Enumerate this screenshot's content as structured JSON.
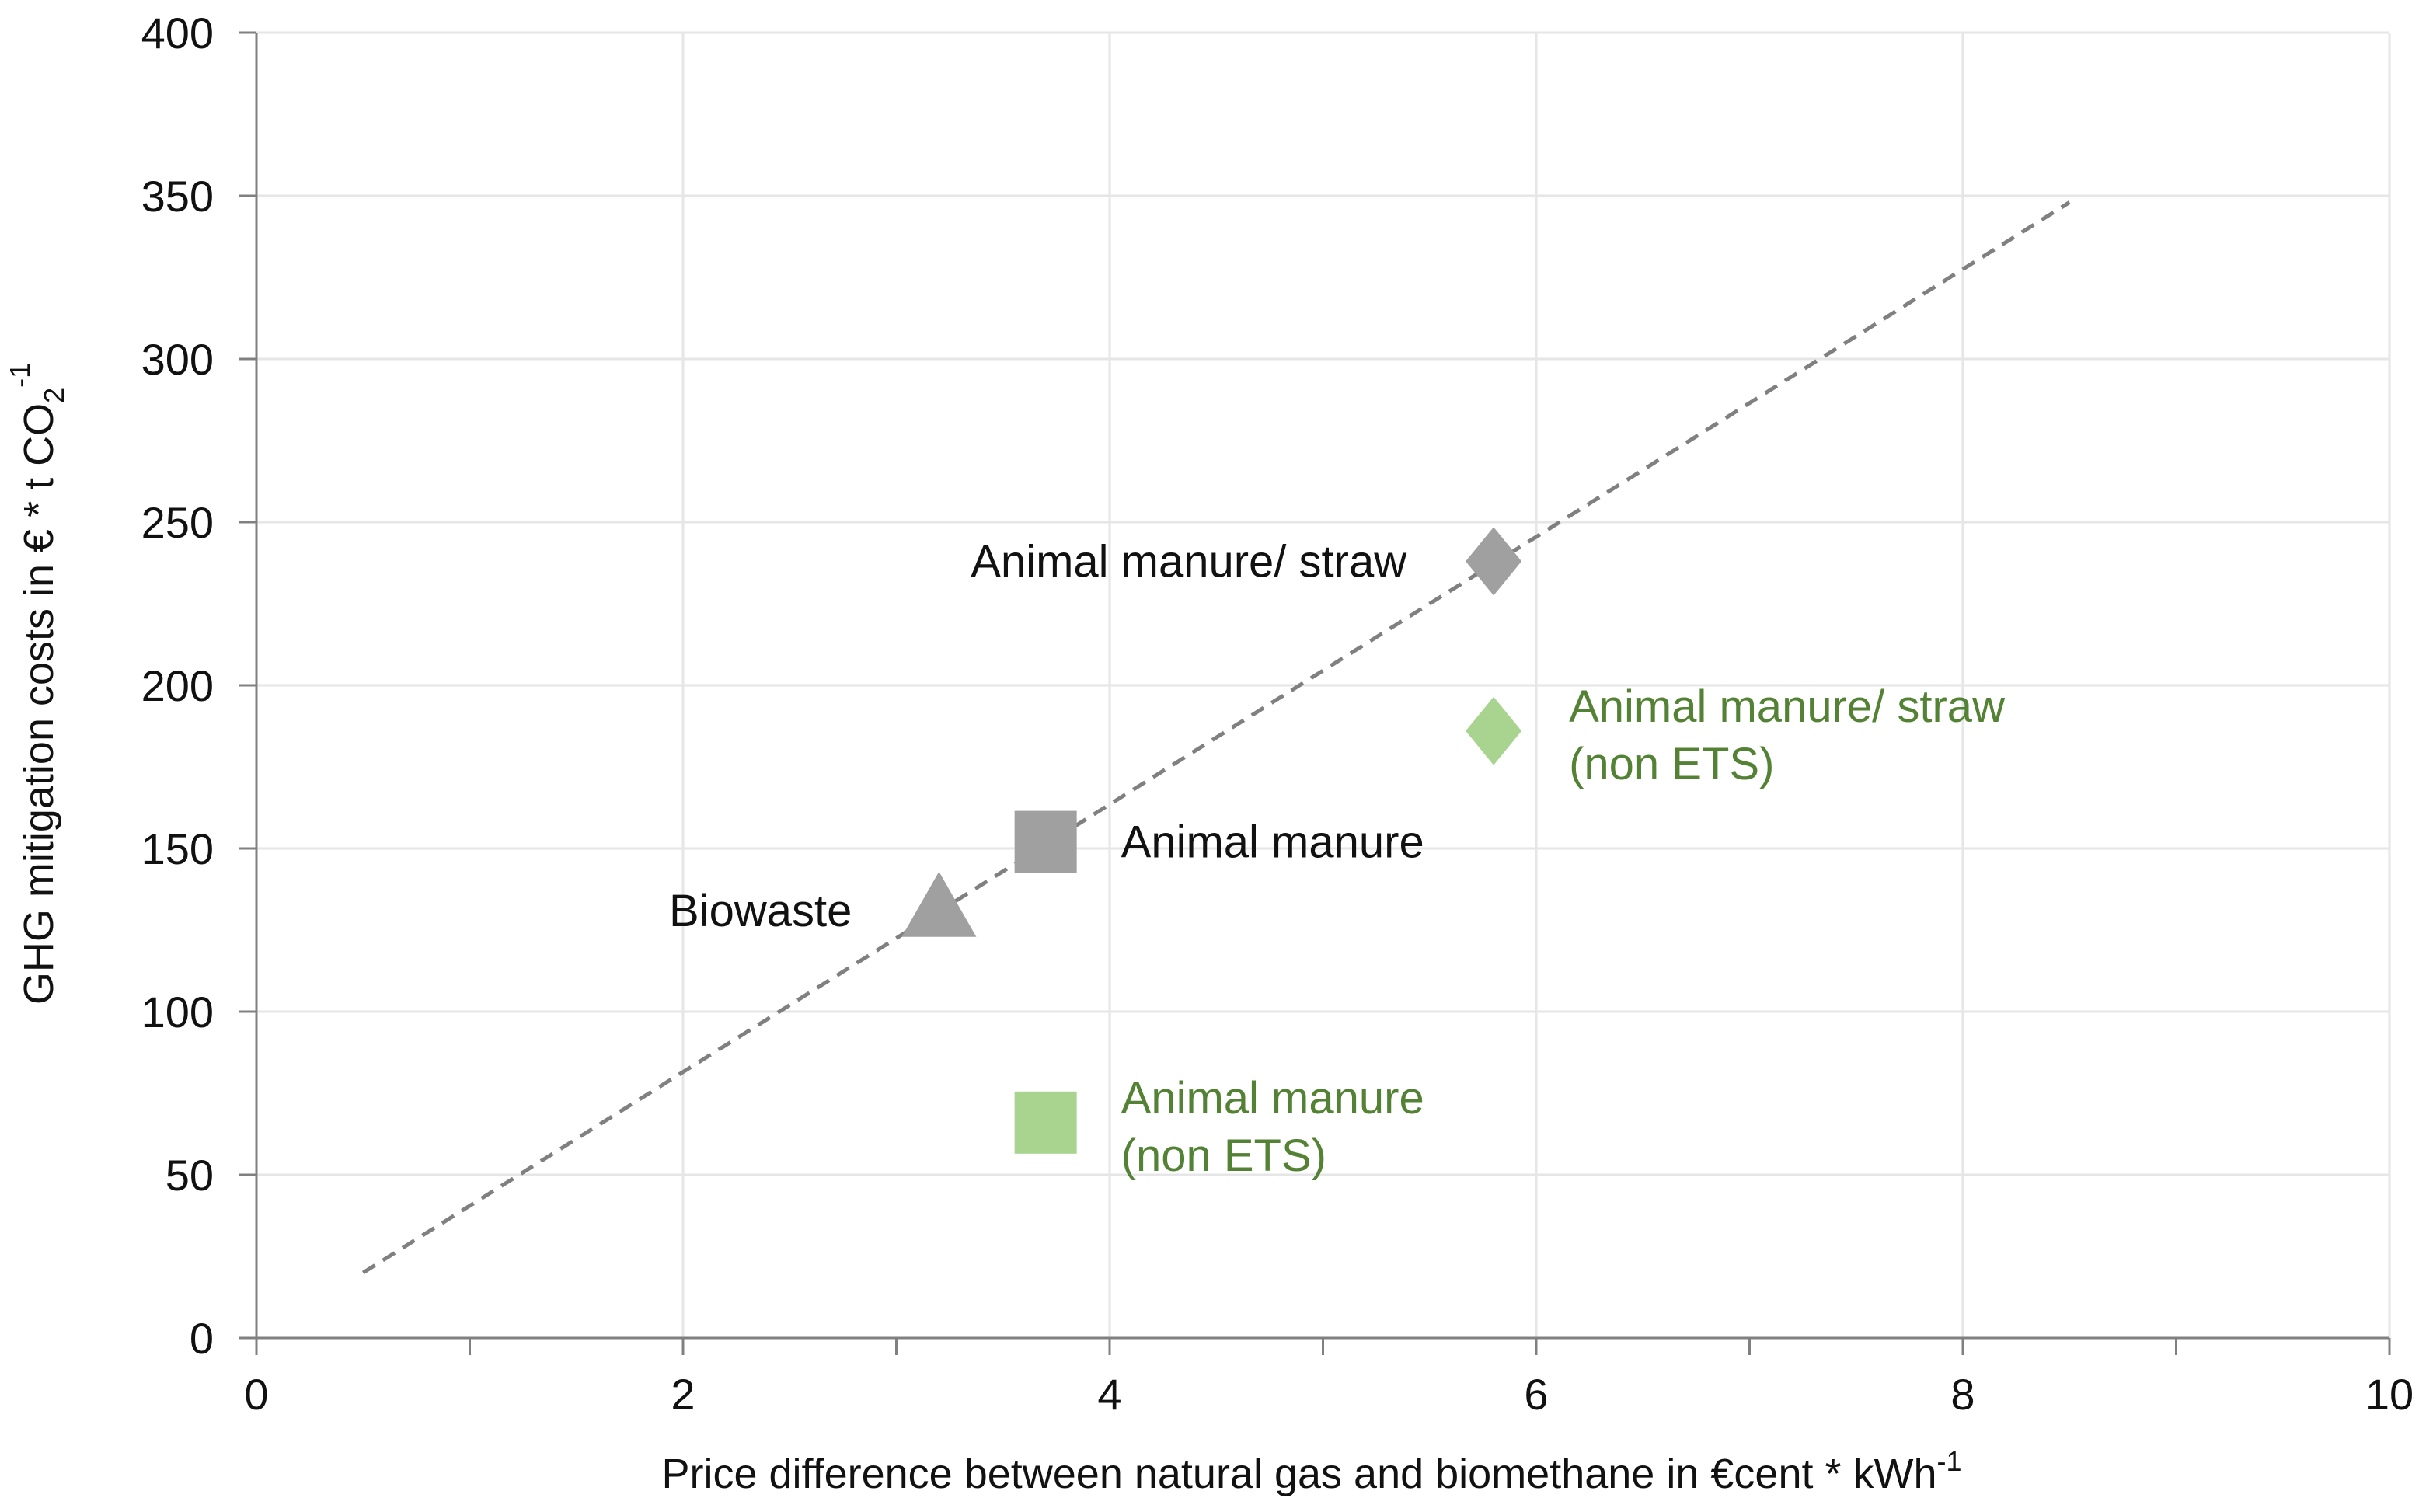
{
  "chart_data": {
    "type": "scatter",
    "title": "",
    "xlabel": {
      "main": "Price difference between natural gas and biomethane in €cent * kWh",
      "sup": "-1"
    },
    "ylabel": {
      "main": "GHG mitigation costs in € * t CO",
      "sub": "2",
      "sup": "-1"
    },
    "xlim": [
      0,
      10
    ],
    "ylim": [
      0,
      400
    ],
    "x_ticks": [
      0,
      2,
      4,
      6,
      8,
      10
    ],
    "x_minor_ticks": [
      1,
      3,
      5,
      7,
      9
    ],
    "y_ticks": [
      0,
      50,
      100,
      150,
      200,
      250,
      300,
      350,
      400
    ],
    "grid": true,
    "trend_line": {
      "x": [
        0.5,
        8.5
      ],
      "y": [
        20,
        348
      ],
      "style": "dashed",
      "color": "#808080"
    },
    "points": [
      {
        "label": [
          "Biowaste"
        ],
        "x": 3.2,
        "y": 131,
        "marker": "triangle",
        "color": "#a0a0a0",
        "label_color": "#111111",
        "label_side": "left"
      },
      {
        "label": [
          "Animal manure"
        ],
        "x": 3.7,
        "y": 152,
        "marker": "square",
        "color": "#a0a0a0",
        "label_color": "#111111",
        "label_side": "right"
      },
      {
        "label": [
          "Animal manure/ straw"
        ],
        "x": 5.8,
        "y": 238,
        "marker": "diamond",
        "color": "#a0a0a0",
        "label_color": "#111111",
        "label_side": "left"
      },
      {
        "label": [
          "Animal manure/ straw",
          "(non ETS)"
        ],
        "x": 5.8,
        "y": 186,
        "marker": "diamond",
        "color": "#a8d48f",
        "label_color": "#548235",
        "label_side": "right"
      },
      {
        "label": [
          "Animal manure",
          "(non ETS)"
        ],
        "x": 3.7,
        "y": 66,
        "marker": "square",
        "color": "#a8d48f",
        "label_color": "#548235",
        "label_side": "right"
      }
    ]
  }
}
